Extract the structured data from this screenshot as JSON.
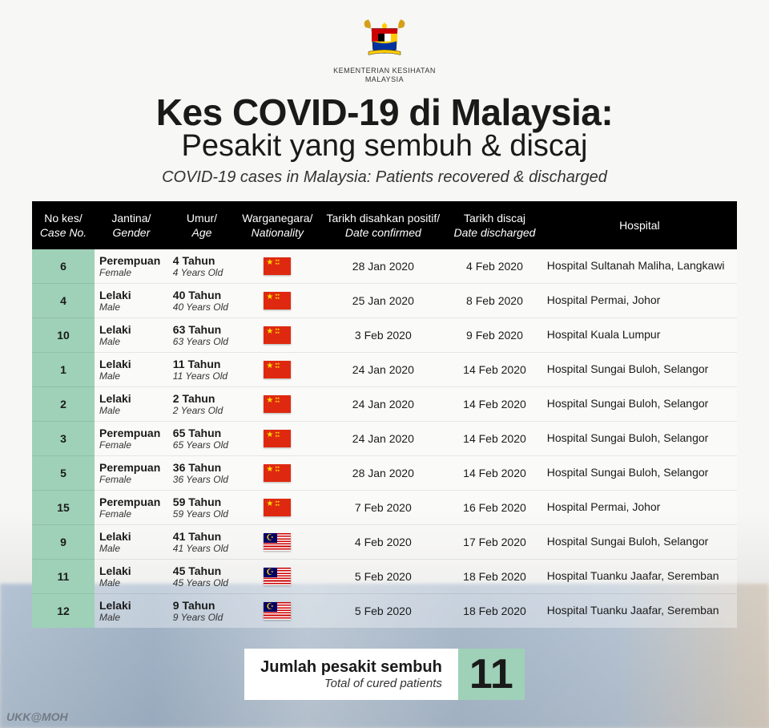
{
  "ministry": {
    "line1": "KEMENTERIAN KESIHATAN",
    "line2": "MALAYSIA"
  },
  "title": {
    "main": "Kes COVID-19 di Malaysia:",
    "sub": "Pesakit yang sembuh & discaj",
    "en": "COVID-19 cases in Malaysia: Patients recovered & discharged"
  },
  "columns": [
    {
      "ms": "No kes/",
      "en": "Case No."
    },
    {
      "ms": "Jantina/",
      "en": "Gender"
    },
    {
      "ms": "Umur/",
      "en": "Age"
    },
    {
      "ms": "Warganegara/",
      "en": "Nationality"
    },
    {
      "ms": "Tarikh disahkan positif/",
      "en": "Date confirmed"
    },
    {
      "ms": "Tarikh discaj",
      "en": "Date discharged"
    },
    {
      "ms": "Hospital",
      "en": ""
    }
  ],
  "rows": [
    {
      "case_no": "6",
      "gender_ms": "Perempuan",
      "gender_en": "Female",
      "age_ms": "4 Tahun",
      "age_en": "4 Years Old",
      "nat": "cn",
      "confirmed": "28 Jan 2020",
      "discharged": "4 Feb 2020",
      "hospital": "Hospital Sultanah Maliha, Langkawi"
    },
    {
      "case_no": "4",
      "gender_ms": "Lelaki",
      "gender_en": "Male",
      "age_ms": "40 Tahun",
      "age_en": "40 Years Old",
      "nat": "cn",
      "confirmed": "25 Jan 2020",
      "discharged": "8 Feb 2020",
      "hospital": "Hospital Permai, Johor"
    },
    {
      "case_no": "10",
      "gender_ms": "Lelaki",
      "gender_en": "Male",
      "age_ms": "63 Tahun",
      "age_en": "63 Years Old",
      "nat": "cn",
      "confirmed": "3 Feb 2020",
      "discharged": "9 Feb 2020",
      "hospital": "Hospital Kuala Lumpur"
    },
    {
      "case_no": "1",
      "gender_ms": "Lelaki",
      "gender_en": "Male",
      "age_ms": "11 Tahun",
      "age_en": "11 Years Old",
      "nat": "cn",
      "confirmed": "24 Jan 2020",
      "discharged": "14 Feb 2020",
      "hospital": "Hospital Sungai Buloh, Selangor"
    },
    {
      "case_no": "2",
      "gender_ms": "Lelaki",
      "gender_en": "Male",
      "age_ms": "2 Tahun",
      "age_en": "2 Years Old",
      "nat": "cn",
      "confirmed": "24 Jan 2020",
      "discharged": "14 Feb 2020",
      "hospital": "Hospital Sungai Buloh, Selangor"
    },
    {
      "case_no": "3",
      "gender_ms": "Perempuan",
      "gender_en": "Female",
      "age_ms": "65 Tahun",
      "age_en": "65 Years Old",
      "nat": "cn",
      "confirmed": "24 Jan 2020",
      "discharged": "14 Feb 2020",
      "hospital": "Hospital Sungai Buloh, Selangor"
    },
    {
      "case_no": "5",
      "gender_ms": "Perempuan",
      "gender_en": "Female",
      "age_ms": "36 Tahun",
      "age_en": "36 Years Old",
      "nat": "cn",
      "confirmed": "28 Jan 2020",
      "discharged": "14 Feb 2020",
      "hospital": "Hospital Sungai Buloh, Selangor"
    },
    {
      "case_no": "15",
      "gender_ms": "Perempuan",
      "gender_en": "Female",
      "age_ms": "59 Tahun",
      "age_en": "59 Years Old",
      "nat": "cn",
      "confirmed": "7 Feb 2020",
      "discharged": "16 Feb 2020",
      "hospital": "Hospital Permai, Johor"
    },
    {
      "case_no": "9",
      "gender_ms": "Lelaki",
      "gender_en": "Male",
      "age_ms": "41 Tahun",
      "age_en": "41 Years Old",
      "nat": "my",
      "confirmed": "4 Feb 2020",
      "discharged": "17 Feb 2020",
      "hospital": "Hospital Sungai Buloh, Selangor"
    },
    {
      "case_no": "11",
      "gender_ms": "Lelaki",
      "gender_en": "Male",
      "age_ms": "45 Tahun",
      "age_en": "45 Years Old",
      "nat": "my",
      "confirmed": "5 Feb 2020",
      "discharged": "18  Feb 2020",
      "hospital": "Hospital Tuanku Jaafar, Seremban"
    },
    {
      "case_no": "12",
      "gender_ms": "Lelaki",
      "gender_en": "Male",
      "age_ms": "9 Tahun",
      "age_en": "9 Years Old",
      "nat": "my",
      "confirmed": "5 Feb 2020",
      "discharged": "18  Feb 2020",
      "hospital": "Hospital Tuanku Jaafar, Seremban"
    }
  ],
  "summary": {
    "label_ms": "Jumlah pesakit sembuh",
    "label_en": "Total of cured patients",
    "value": "11"
  },
  "watermark": "UKK@MOH",
  "colors": {
    "header_bg": "#000000",
    "accent_bg": "#9ed1b7",
    "text": "#1a1a1a"
  }
}
